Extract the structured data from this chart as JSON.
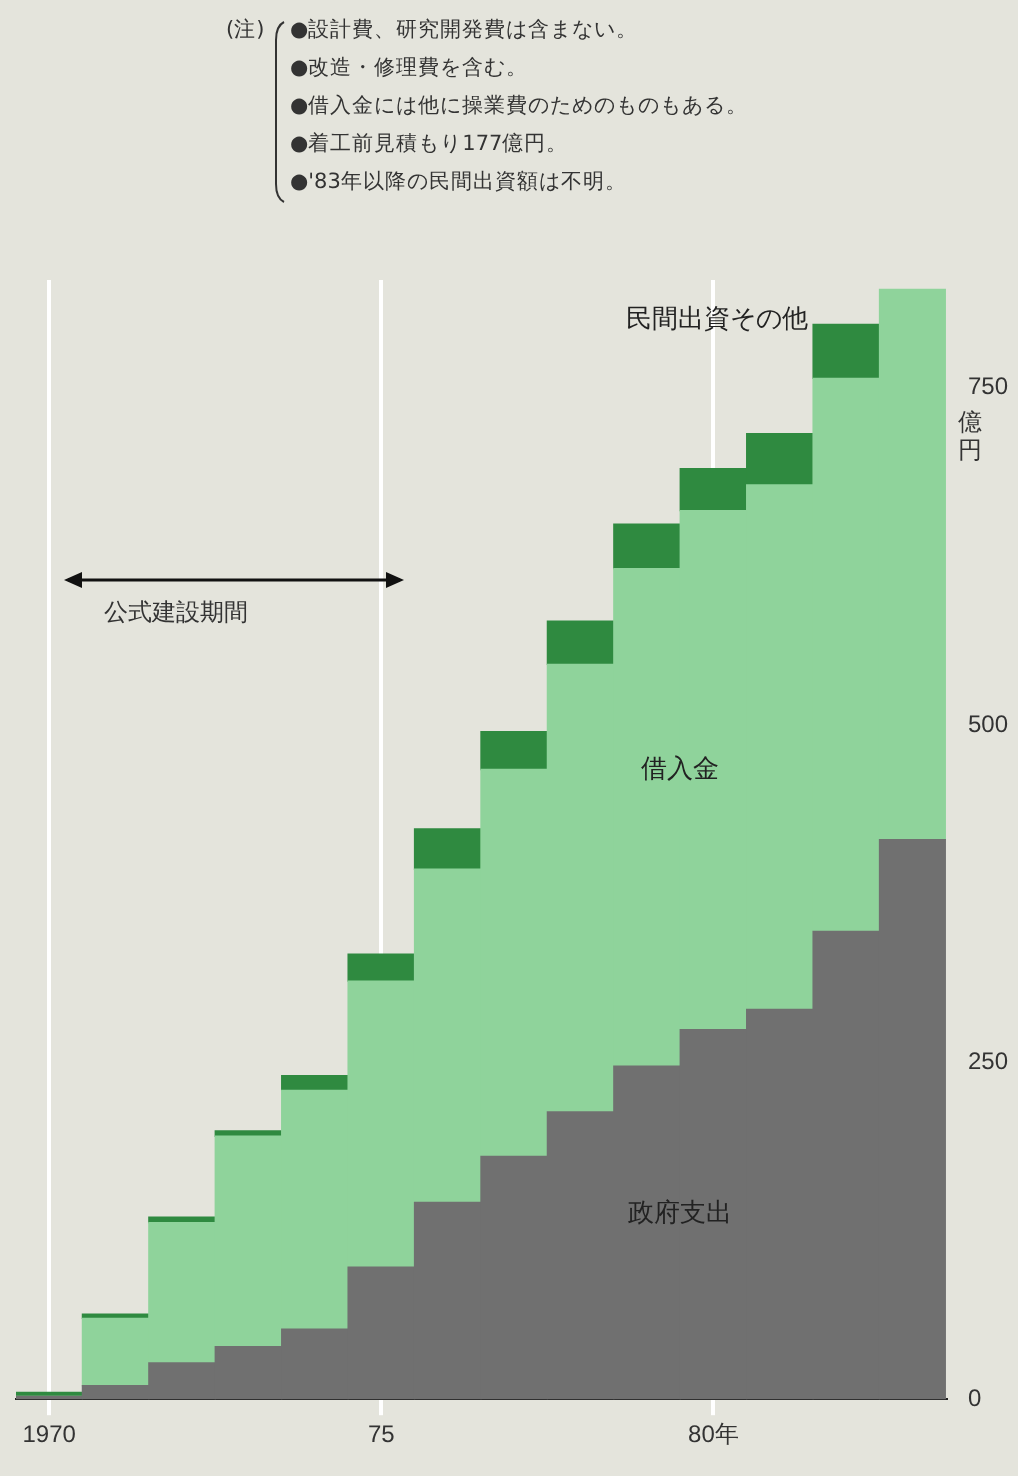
{
  "chart_data": {
    "type": "bar",
    "stacked": true,
    "categories": [
      "1970",
      null,
      null,
      null,
      null,
      "75",
      null,
      null,
      null,
      null,
      "80年",
      null,
      null,
      null
    ],
    "series": [
      {
        "name": "政府支出",
        "color": "#707070",
        "values": [
          2,
          10,
          27,
          39,
          52,
          98,
          146,
          180,
          213,
          247,
          274,
          289,
          347,
          415
        ]
      },
      {
        "name": "借入金",
        "color": "#8fd39b",
        "values": [
          0,
          50,
          104,
          156,
          177,
          212,
          247,
          287,
          332,
          369,
          385,
          389,
          410,
          408
        ]
      },
      {
        "name": "民間出資その他",
        "color": "#2f8a40",
        "values": [
          3,
          3,
          4,
          4,
          11,
          20,
          30,
          28,
          32,
          33,
          31,
          38,
          40,
          null
        ]
      }
    ],
    "ylabel": "億円",
    "ylim": [
      0,
      830
    ],
    "yticks": [
      0,
      250,
      500,
      750
    ],
    "grid": "x",
    "legend": false,
    "annotations": [
      "(注)",
      "●設計費、研究開発費は含まない。",
      "●改造・修理費を含む。",
      "●借入金には他に操業費のためのものもある。",
      "●着工前見積もり177億円。",
      "●'83年以降の民間出資額は不明。",
      "公式建設期間"
    ]
  }
}
